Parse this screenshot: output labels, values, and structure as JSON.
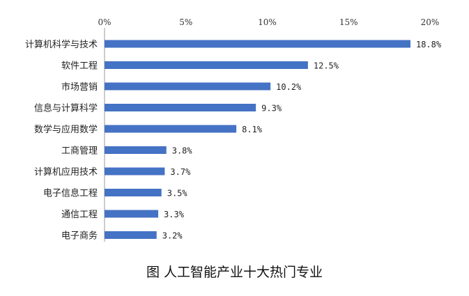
{
  "caption": "图  人工智能产业十大热门专业",
  "chart_data": {
    "type": "bar",
    "orientation": "horizontal",
    "categories": [
      "计算机科学与技术",
      "软件工程",
      "市场营销",
      "信息与计算科学",
      "数学与应用数学",
      "工商管理",
      "计算机应用技术",
      "电子信息工程",
      "通信工程",
      "电子商务"
    ],
    "values": [
      18.8,
      12.5,
      10.2,
      9.3,
      8.1,
      3.8,
      3.7,
      3.5,
      3.3,
      3.2
    ],
    "value_labels": [
      "18.8%",
      "12.5%",
      "10.2%",
      "9.3%",
      "8.1%",
      "3.8%",
      "3.7%",
      "3.5%",
      "3.3%",
      "3.2%"
    ],
    "x_ticks": [
      "0%",
      "5%",
      "10%",
      "15%",
      "20%"
    ],
    "xlim": [
      0,
      20
    ],
    "x_axis_position": "top",
    "grid": false,
    "bar_color": "#4472c4"
  }
}
